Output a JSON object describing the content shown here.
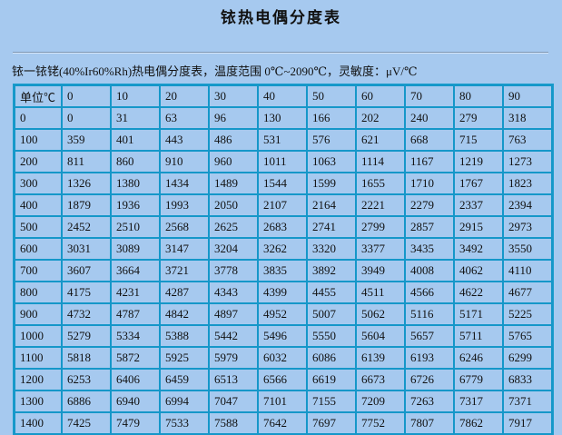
{
  "title": "铱热电偶分度表",
  "subtitle": "铱一铱铑(40%Ir60%Rh)热电偶分度表，温度范围 0℃~2090℃，灵敏度：μV/℃",
  "header": [
    "单位℃",
    "0",
    "10",
    "20",
    "30",
    "40",
    "50",
    "60",
    "70",
    "80",
    "90"
  ],
  "rows": [
    [
      "0",
      "0",
      "31",
      "63",
      "96",
      "130",
      "166",
      "202",
      "240",
      "279",
      "318"
    ],
    [
      "100",
      "359",
      "401",
      "443",
      "486",
      "531",
      "576",
      "621",
      "668",
      "715",
      "763"
    ],
    [
      "200",
      "811",
      "860",
      "910",
      "960",
      "1011",
      "1063",
      "1114",
      "1167",
      "1219",
      "1273"
    ],
    [
      "300",
      "1326",
      "1380",
      "1434",
      "1489",
      "1544",
      "1599",
      "1655",
      "1710",
      "1767",
      "1823"
    ],
    [
      "400",
      "1879",
      "1936",
      "1993",
      "2050",
      "2107",
      "2164",
      "2221",
      "2279",
      "2337",
      "2394"
    ],
    [
      "500",
      "2452",
      "2510",
      "2568",
      "2625",
      "2683",
      "2741",
      "2799",
      "2857",
      "2915",
      "2973"
    ],
    [
      "600",
      "3031",
      "3089",
      "3147",
      "3204",
      "3262",
      "3320",
      "3377",
      "3435",
      "3492",
      "3550"
    ],
    [
      "700",
      "3607",
      "3664",
      "3721",
      "3778",
      "3835",
      "3892",
      "3949",
      "4008",
      "4062",
      "4110"
    ],
    [
      "800",
      "4175",
      "4231",
      "4287",
      "4343",
      "4399",
      "4455",
      "4511",
      "4566",
      "4622",
      "4677"
    ],
    [
      "900",
      "4732",
      "4787",
      "4842",
      "4897",
      "4952",
      "5007",
      "5062",
      "5116",
      "5171",
      "5225"
    ],
    [
      "1000",
      "5279",
      "5334",
      "5388",
      "5442",
      "5496",
      "5550",
      "5604",
      "5657",
      "5711",
      "5765"
    ],
    [
      "1100",
      "5818",
      "5872",
      "5925",
      "5979",
      "6032",
      "6086",
      "6139",
      "6193",
      "6246",
      "6299"
    ],
    [
      "1200",
      "6253",
      "6406",
      "6459",
      "6513",
      "6566",
      "6619",
      "6673",
      "6726",
      "6779",
      "6833"
    ],
    [
      "1300",
      "6886",
      "6940",
      "6994",
      "7047",
      "7101",
      "7155",
      "7209",
      "7263",
      "7317",
      "7371"
    ],
    [
      "1400",
      "7425",
      "7479",
      "7533",
      "7588",
      "7642",
      "7697",
      "7752",
      "7807",
      "7862",
      "7917"
    ]
  ]
}
